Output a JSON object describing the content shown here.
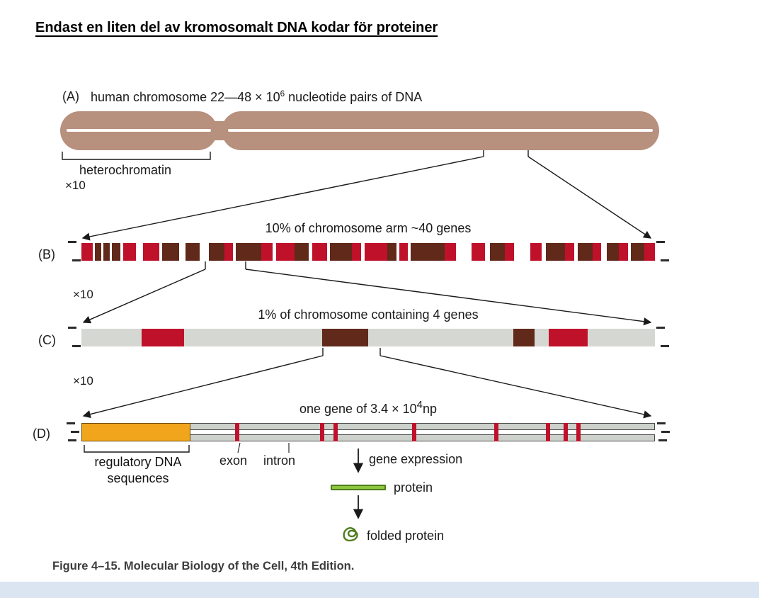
{
  "page": {
    "title": "Endast en liten del av kromosomalt DNA kodar för proteiner",
    "caption": "Figure 4–15. Molecular Biology of the Cell, 4th Edition."
  },
  "colors": {
    "chromosome_tan": "#b7907e",
    "red": "#c0112b",
    "dark_maroon": "#60291a",
    "gray_bar": "#d5d8d2",
    "d_track_gray": "#cdd1cb",
    "orange": "#f0a51c",
    "protein_green": "#8dc63f",
    "protein_green_dark": "#4e7d1e"
  },
  "panelA": {
    "label": "(A)",
    "title_prefix": "human chromosome 22—48 × 10",
    "title_sup": "6",
    "title_suffix": " nucleotide pairs of DNA",
    "heterochromatin_label": "heterochromatin",
    "zoom_label": "×10"
  },
  "panelB": {
    "label": "(B)",
    "title": "10% of chromosome arm ~40 genes",
    "zoom_label": "×10",
    "segments": [
      {
        "c": "R",
        "w": 2.0
      },
      {
        "c": "W",
        "w": 0.4
      },
      {
        "c": "D",
        "w": 1.1
      },
      {
        "c": "W",
        "w": 0.35
      },
      {
        "c": "D",
        "w": 1.1
      },
      {
        "c": "W",
        "w": 0.35
      },
      {
        "c": "D",
        "w": 1.5
      },
      {
        "c": "W",
        "w": 0.5
      },
      {
        "c": "R",
        "w": 2.2
      },
      {
        "c": "W",
        "w": 1.3
      },
      {
        "c": "R",
        "w": 2.8
      },
      {
        "c": "W",
        "w": 0.5
      },
      {
        "c": "D",
        "w": 3.0
      },
      {
        "c": "W",
        "w": 1.0
      },
      {
        "c": "D",
        "w": 2.5
      },
      {
        "c": "W",
        "w": 1.6
      },
      {
        "c": "D",
        "w": 2.8
      },
      {
        "c": "R",
        "w": 1.4
      },
      {
        "c": "W",
        "w": 0.5
      },
      {
        "c": "D",
        "w": 4.5
      },
      {
        "c": "R",
        "w": 2.0
      },
      {
        "c": "W",
        "w": 0.6
      },
      {
        "c": "R",
        "w": 3.2
      },
      {
        "c": "D",
        "w": 2.4
      },
      {
        "c": "W",
        "w": 0.7
      },
      {
        "c": "R",
        "w": 2.6
      },
      {
        "c": "W",
        "w": 0.5
      },
      {
        "c": "D",
        "w": 3.8
      },
      {
        "c": "R",
        "w": 1.6
      },
      {
        "c": "W",
        "w": 0.6
      },
      {
        "c": "R",
        "w": 4.0
      },
      {
        "c": "D",
        "w": 1.6
      },
      {
        "c": "W",
        "w": 0.5
      },
      {
        "c": "R",
        "w": 1.4
      },
      {
        "c": "W",
        "w": 0.5
      },
      {
        "c": "D",
        "w": 6.0
      },
      {
        "c": "R",
        "w": 2.0
      },
      {
        "c": "W",
        "w": 2.6
      },
      {
        "c": "R",
        "w": 2.4
      },
      {
        "c": "W",
        "w": 0.9
      },
      {
        "c": "D",
        "w": 2.6
      },
      {
        "c": "R",
        "w": 1.6
      },
      {
        "c": "W",
        "w": 2.8
      },
      {
        "c": "R",
        "w": 2.0
      },
      {
        "c": "W",
        "w": 0.7
      },
      {
        "c": "D",
        "w": 3.4
      },
      {
        "c": "R",
        "w": 1.6
      },
      {
        "c": "W",
        "w": 0.6
      },
      {
        "c": "D",
        "w": 2.6
      },
      {
        "c": "R",
        "w": 1.5
      },
      {
        "c": "W",
        "w": 1.0
      },
      {
        "c": "D",
        "w": 2.0
      },
      {
        "c": "R",
        "w": 1.6
      },
      {
        "c": "W",
        "w": 0.5
      },
      {
        "c": "D",
        "w": 2.4
      },
      {
        "c": "R",
        "w": 1.8
      }
    ]
  },
  "panelC": {
    "label": "(C)",
    "title": "1% of chromosome containing 4 genes",
    "zoom_label": "×10",
    "segments": [
      {
        "c": "G",
        "w": 10.5
      },
      {
        "c": "R",
        "w": 7.4
      },
      {
        "c": "G",
        "w": 24.1
      },
      {
        "c": "D",
        "w": 8.0
      },
      {
        "c": "G",
        "w": 25.3
      },
      {
        "c": "D",
        "w": 3.7
      },
      {
        "c": "G",
        "w": 2.5
      },
      {
        "c": "R",
        "w": 6.8
      },
      {
        "c": "G",
        "w": 11.7
      }
    ]
  },
  "panelD": {
    "label": "(D)",
    "title_prefix": "one gene of 3.4 × 10",
    "title_sup": "4",
    "title_suffix": "np",
    "orange_pct": 19,
    "exon_ticks": [
      27.2,
      42.0,
      44.3,
      58.0,
      72.4,
      81.3,
      84.4,
      86.7
    ],
    "regulatory_line1": "regulatory DNA",
    "regulatory_line2": "sequences",
    "exon_label": "exon",
    "intron_label": "intron",
    "gene_expression_label": "gene expression",
    "protein_label": "protein",
    "folded_protein_label": "folded protein"
  }
}
